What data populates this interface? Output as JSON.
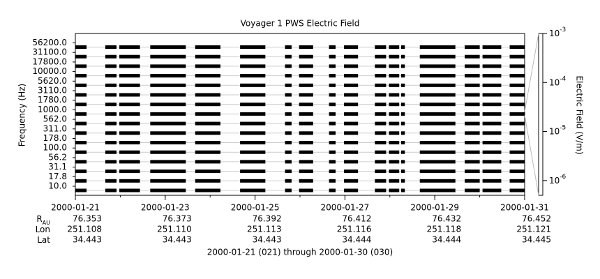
{
  "chart_data": {
    "type": "spectrogram",
    "title": "Voyager 1 PWS Electric Field",
    "y_label": "Frequency (Hz)",
    "categories": [
      "10.0",
      "17.8",
      "31.1",
      "56.2",
      "100.0",
      "178.0",
      "311.0",
      "562.0",
      "1000.0",
      "1780.0",
      "3110.0",
      "5620.0",
      "10000.0",
      "17800.0",
      "31100.0",
      "56200.0"
    ],
    "color": "#000000",
    "xlim": [
      "2000-01-21",
      "2000-01-31"
    ],
    "xticks": [
      "2000-01-21",
      "2000-01-23",
      "2000-01-25",
      "2000-01-27",
      "2000-01-29",
      "2000-01-31"
    ],
    "segments": [
      [
        "2000-01-21T00:00",
        "2000-01-21T06:00"
      ],
      [
        "2000-01-21T16:00",
        "2000-01-21T22:00"
      ],
      [
        "2000-01-21T23:30",
        "2000-01-22T10:30"
      ],
      [
        "2000-01-22T16:00",
        "2000-01-23T11:00"
      ],
      [
        "2000-01-23T16:00",
        "2000-01-24T05:30"
      ],
      [
        "2000-01-24T16:00",
        "2000-01-25T05:30"
      ],
      [
        "2000-01-25T16:00",
        "2000-01-25T19:30"
      ],
      [
        "2000-01-25T23:30",
        "2000-01-26T07:00"
      ],
      [
        "2000-01-26T15:30",
        "2000-01-26T19:00"
      ],
      [
        "2000-01-26T23:30",
        "2000-01-27T07:00"
      ],
      [
        "2000-01-27T16:00",
        "2000-01-27T22:00"
      ],
      [
        "2000-01-27T23:30",
        "2000-01-28T05:00"
      ],
      [
        "2000-01-28T06:00",
        "2000-01-28T08:00"
      ],
      [
        "2000-01-28T16:00",
        "2000-01-29T11:00"
      ],
      [
        "2000-01-29T16:00",
        "2000-01-30T00:00"
      ],
      [
        "2000-01-30T01:30",
        "2000-01-30T11:30"
      ],
      [
        "2000-01-30T16:00",
        "2000-01-31T00:00"
      ]
    ],
    "colorbar": {
      "label": "Electric Field (V/m)",
      "log_scale": true,
      "ylim": [
        5e-07,
        0.001
      ],
      "yticks": [
        {
          "value": 0.001,
          "label": "10",
          "exponent": "-3"
        },
        {
          "value": 0.0001,
          "label": "10",
          "exponent": "-4"
        },
        {
          "value": 1e-05,
          "label": "10",
          "exponent": "-5"
        },
        {
          "value": 1e-06,
          "label": "10",
          "exponent": "-6"
        }
      ]
    },
    "ephemeris": [
      {
        "label": "R",
        "subscript": "AU",
        "values": [
          "76.353",
          "76.373",
          "76.392",
          "76.412",
          "76.432",
          "76.452"
        ]
      },
      {
        "label": "Lon",
        "values": [
          "251.108",
          "251.110",
          "251.113",
          "251.116",
          "251.118",
          "251.121"
        ]
      },
      {
        "label": "Lat",
        "values": [
          "34.443",
          "34.443",
          "34.443",
          "34.444",
          "34.444",
          "34.445"
        ]
      }
    ],
    "footer": "2000-01-21 (021) through 2000-01-30 (030)"
  }
}
